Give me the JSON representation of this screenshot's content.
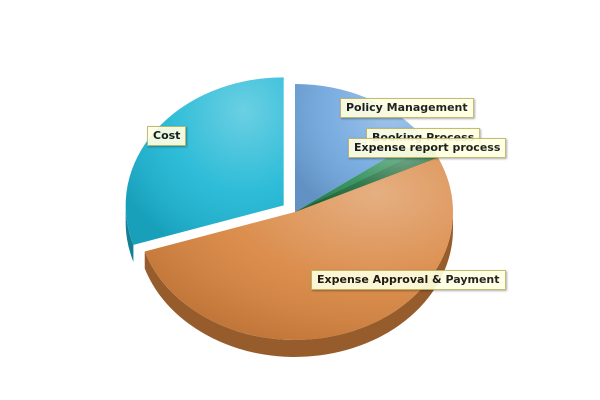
{
  "chart_data": {
    "type": "pie",
    "title": "",
    "legend": "none",
    "slices": [
      {
        "label": "Policy Management",
        "value": 15,
        "color": "#6fa6de"
      },
      {
        "label": "Booking Process",
        "value": 1.5,
        "color": "#2a8c56"
      },
      {
        "label": "Expense report process",
        "value": 1.5,
        "color": "#1d6d3c"
      },
      {
        "label": "Expense Approval & Payment",
        "value": 52,
        "color": "#d8843e"
      },
      {
        "label": "Cost",
        "value": 30,
        "color": "#1bb6d4"
      }
    ]
  }
}
